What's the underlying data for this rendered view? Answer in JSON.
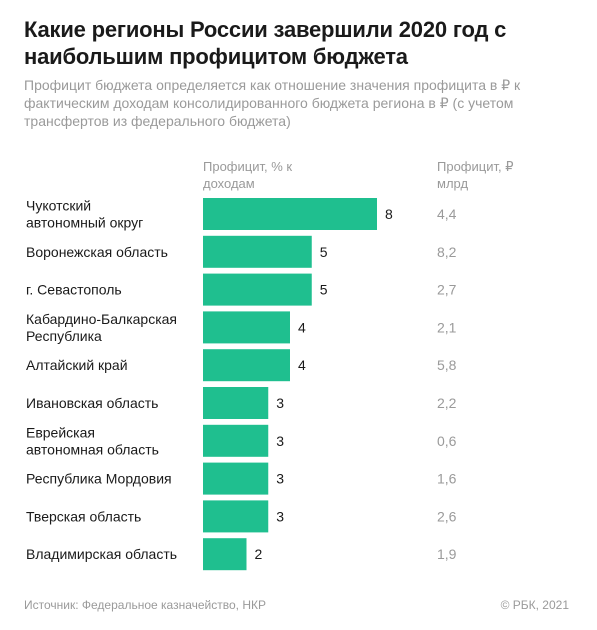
{
  "header": {
    "title": "Какие регионы России завершили 2020 год с наибольшим профицитом бюджета",
    "subtitle": "Профицит бюджета определяется как отношение значения профицита в ₽ к фактическим доходам консолидированного бюджета региона в ₽ (с учетом трансфертов из федерального бюджета)"
  },
  "columns": {
    "percent_header": "Профицит, % к доходам",
    "rub_header": "Профицит, ₽ млрд"
  },
  "footer": {
    "source": "Источник: Федеральное казначейство, НКР",
    "copyright": "© РБК, 2021"
  },
  "colors": {
    "bar": "#1fbf8f",
    "label": "#1a1a1a",
    "muted": "#9a9a9a"
  },
  "chart_data": {
    "type": "bar",
    "orientation": "horizontal",
    "categories": [
      "Чукотский автономный округ",
      "Воронежская область",
      "г. Севастополь",
      "Кабардино-Балкарская Республика",
      "Алтайский край",
      "Ивановская область",
      "Еврейская автономная область",
      "Республика Мордовия",
      "Тверская область",
      "Владимирская область"
    ],
    "category_lines": [
      [
        "Чукотский",
        "автономный округ"
      ],
      [
        "Воронежская область"
      ],
      [
        "г. Севастополь"
      ],
      [
        "Кабардино-Балкарская",
        "Республика"
      ],
      [
        "Алтайский край"
      ],
      [
        "Ивановская область"
      ],
      [
        "Еврейская",
        "автономная область"
      ],
      [
        "Республика Мордовия"
      ],
      [
        "Тверская область"
      ],
      [
        "Владимирская область"
      ]
    ],
    "series": [
      {
        "name": "Профицит, % к доходам",
        "values": [
          8,
          5,
          5,
          4,
          4,
          3,
          3,
          3,
          3,
          2
        ]
      }
    ],
    "secondary_values": [
      "4,4",
      "8,2",
      "2,7",
      "2,1",
      "5,8",
      "2,2",
      "0,6",
      "1,6",
      "2,6",
      "1,9"
    ],
    "xlim": [
      0,
      8
    ],
    "grid": false
  }
}
